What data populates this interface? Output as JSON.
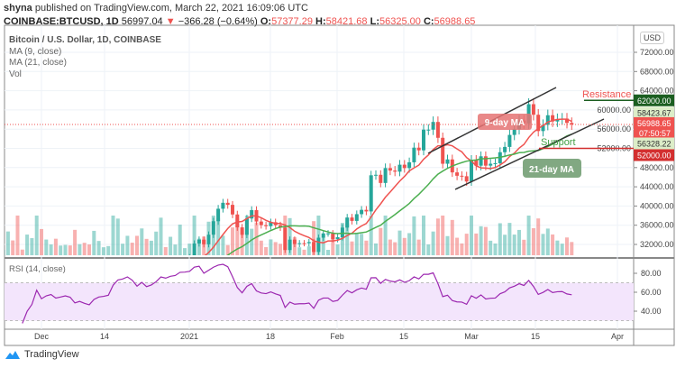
{
  "header": {
    "publisher": "shyna",
    "published_text": "published on TradingView.com, March 22, 2021 16:09:06 UTC",
    "symbol": "COINBASE:BTCUSD, 1D",
    "last": "56997.04",
    "change": "−366.28 (−0.64%)",
    "o_label": "O:",
    "o": "57377.29",
    "h_label": "H:",
    "h": "58421.68",
    "l_label": "L:",
    "l": "56325.00",
    "c_label": "C:",
    "c": "56988.65"
  },
  "legend": {
    "title": "Bitcoin / U.S. Dollar, 1D, COINBASE",
    "ma9": "MA (9, close)",
    "ma21": "MA (21, close)",
    "vol": "Vol"
  },
  "rsi_label": "RSI (14, close)",
  "currency_button": "USD",
  "footer": {
    "brand": "TradingView"
  },
  "colors": {
    "up": "#26a69a",
    "down": "#ef5350",
    "ma9": "#ef5350",
    "ma21": "#4caf50",
    "rsi": "#9c27b0",
    "resistance": "#ef5350",
    "support": "#43a047"
  },
  "chart_data": {
    "type": "candlestick",
    "x_start": "2020-11-22",
    "interval": "1D",
    "closes": [
      18400,
      18400,
      19150,
      18750,
      17150,
      17140,
      17720,
      18180,
      19700,
      18790,
      19220,
      19450,
      18970,
      19150,
      19360,
      19170,
      18320,
      18550,
      18260,
      18040,
      18800,
      19170,
      19280,
      19440,
      21350,
      22830,
      23140,
      23860,
      23480,
      22750,
      23830,
      23250,
      23720,
      24680,
      26440,
      26280,
      27040,
      27360,
      28890,
      29000,
      29400,
      32200,
      33000,
      32030,
      34030,
      36830,
      39430,
      40670,
      40240,
      38240,
      35550,
      34000,
      37400,
      39150,
      36770,
      36020,
      35800,
      36630,
      36000,
      35520,
      30830,
      33000,
      32080,
      32260,
      32250,
      32500,
      30430,
      33400,
      34300,
      34300,
      33100,
      33500,
      35500,
      37600,
      36900,
      38300,
      39200,
      38870,
      46400,
      46500,
      44800,
      47900,
      47380,
      47150,
      48600,
      47900,
      49100,
      52150,
      51590,
      55900,
      55900,
      57500,
      54200,
      48800,
      49700,
      47000,
      46300,
      46200,
      45100,
      49600,
      48400,
      50350,
      48400,
      48800,
      48900,
      51200,
      52300,
      54800,
      56000,
      57800,
      57200,
      61200,
      59000,
      55600,
      56900,
      58900,
      57600,
      58100,
      58200,
      57300,
      56990
    ],
    "x_ticks": [
      "Dec",
      "14",
      "2021",
      "18",
      "Feb",
      "15",
      "Mar",
      "15",
      "Apr"
    ],
    "y_ticks": [
      72000,
      68000,
      64000,
      60000,
      56000,
      52000,
      48000,
      44000,
      40000,
      36000,
      32000
    ],
    "ylim": [
      29700,
      76000
    ],
    "price_tags": [
      {
        "value": "62000.00",
        "color": "#1b5e20"
      },
      {
        "value": "58423.67",
        "color": "#dcedc8"
      },
      {
        "value": "56988.65",
        "sub": "07:50:57",
        "color": "#ef5350"
      },
      {
        "value": "56328.22",
        "color": "#dcedc8"
      },
      {
        "value": "52000.00",
        "color": "#d32f2f"
      }
    ],
    "annotations": {
      "resistance": "Resistance",
      "support": "Support",
      "ma9_label": "9-day MA",
      "ma21_label": "21-day MA"
    },
    "resistance_level": 62000,
    "support_level": 52000,
    "rsi": {
      "ticks": [
        "80.00",
        "60.00",
        "40.00"
      ],
      "band": [
        30,
        70
      ]
    }
  }
}
